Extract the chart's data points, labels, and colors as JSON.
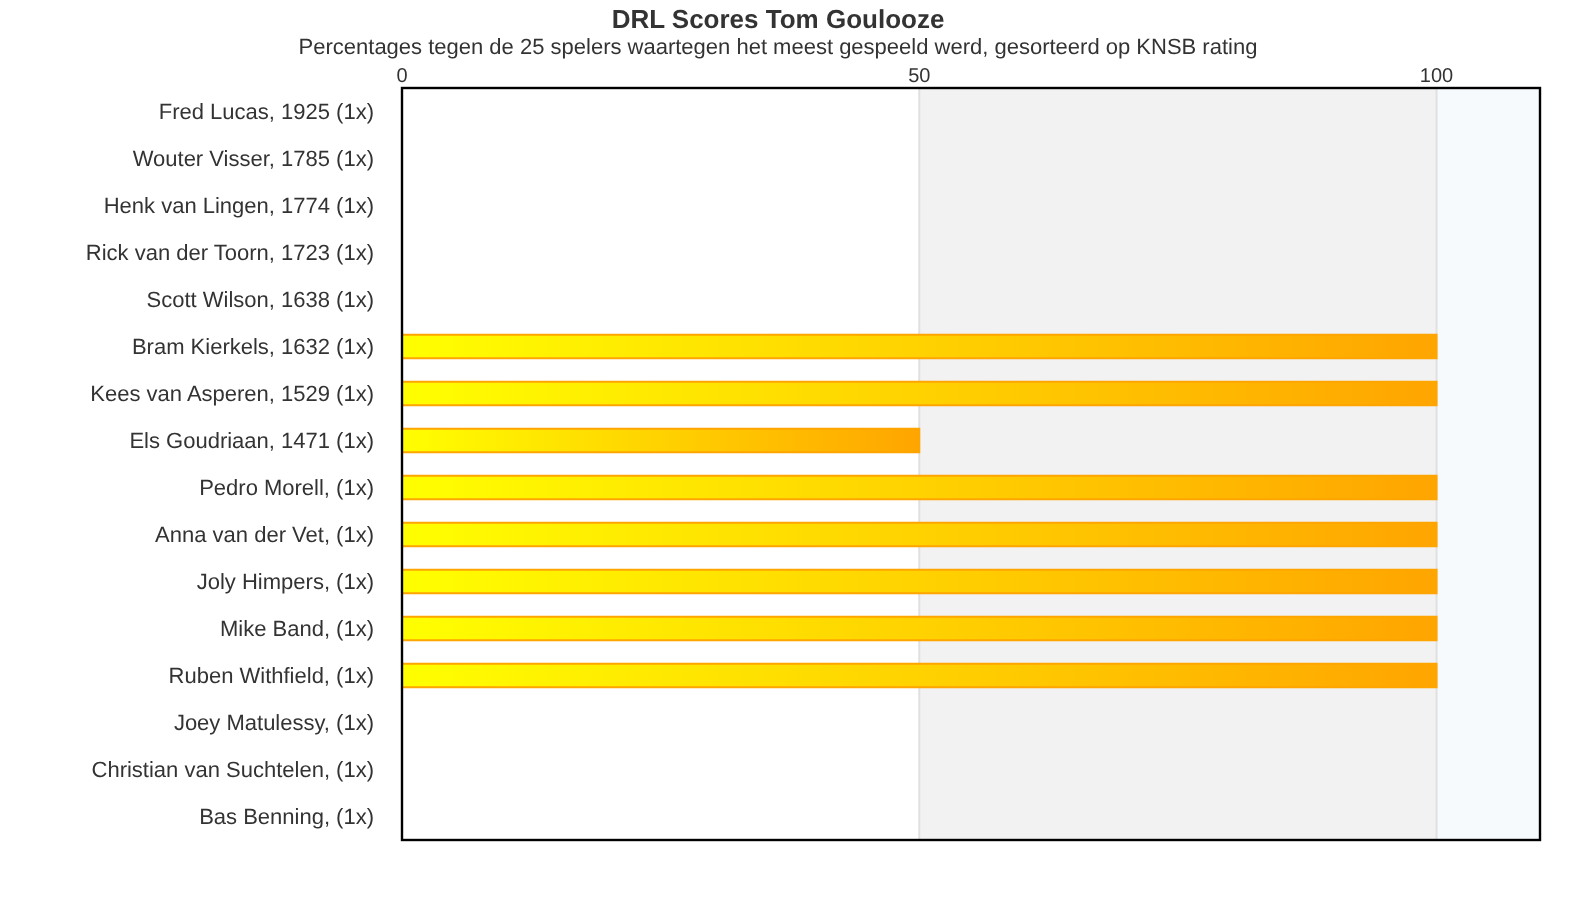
{
  "chart_data": {
    "type": "bar",
    "orientation": "horizontal",
    "title": "DRL Scores Tom Goulooze",
    "subtitle": "Percentages tegen de 25 spelers waartegen het meest gespeeld werd, gesorteerd op KNSB rating",
    "categories": [
      "Fred Lucas, 1925 (1x)",
      "Wouter Visser, 1785 (1x)",
      "Henk van Lingen, 1774 (1x)",
      "Rick van der Toorn, 1723 (1x)",
      "Scott Wilson, 1638 (1x)",
      "Bram Kierkels, 1632 (1x)",
      "Kees van Asperen, 1529 (1x)",
      "Els Goudriaan, 1471 (1x)",
      "Pedro Morell,  (1x)",
      "Anna van der Vet,  (1x)",
      "Joly Himpers,  (1x)",
      "Mike Band,  (1x)",
      "Ruben Withfield,  (1x)",
      "Joey Matulessy,  (1x)",
      "Christian van Suchtelen,  (1x)",
      "Bas Benning,  (1x)"
    ],
    "series": [
      {
        "color": "#ffa500",
        "values": [
          0,
          0,
          0,
          0,
          0,
          100,
          100,
          50,
          100,
          100,
          100,
          100,
          100,
          0,
          0,
          0
        ]
      }
    ],
    "xlim": [
      0,
      110
    ],
    "xticks": [
      0,
      50,
      100
    ],
    "grid": "x",
    "bands": [
      {
        "axis": "x",
        "from": 50,
        "to": 100,
        "color": "#f2f2f2"
      },
      {
        "axis": "x",
        "from": 100,
        "to": 110,
        "color": "#f7fafd"
      }
    ]
  }
}
